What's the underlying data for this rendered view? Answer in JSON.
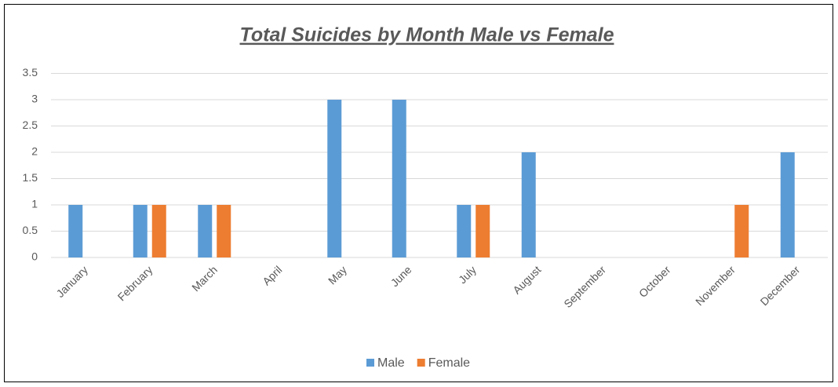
{
  "chart_data": {
    "type": "bar",
    "title": "Total Suicides by Month Male vs Female",
    "categories": [
      "January",
      "February",
      "March",
      "April",
      "May",
      "June",
      "July",
      "August",
      "September",
      "October",
      "November",
      "December"
    ],
    "series": [
      {
        "name": "Male",
        "color": "#5b9bd5",
        "values": [
          1,
          1,
          1,
          0,
          3,
          3,
          1,
          2,
          0,
          0,
          0,
          2
        ]
      },
      {
        "name": "Female",
        "color": "#ed7d31",
        "values": [
          0,
          1,
          1,
          0,
          0,
          0,
          1,
          0,
          0,
          0,
          1,
          0
        ]
      }
    ],
    "ylim": [
      0,
      3.5
    ],
    "yticks": [
      0,
      0.5,
      1,
      1.5,
      2,
      2.5,
      3,
      3.5
    ],
    "grid": true,
    "legend": "bottom"
  }
}
